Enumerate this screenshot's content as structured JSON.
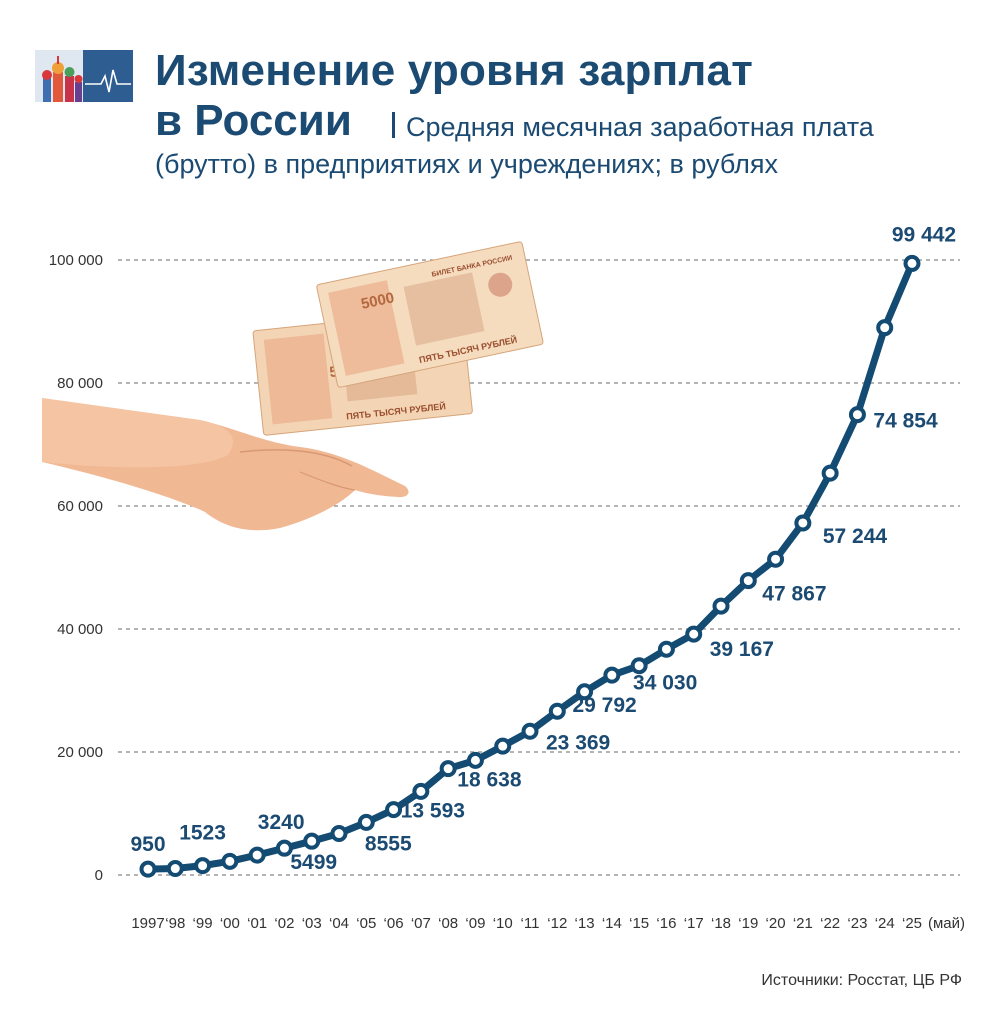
{
  "header": {
    "title_line1": "Изменение уровня зарплат",
    "title_line2": "в России",
    "subtitle_line1": "Средняя месячная заработная плата",
    "subtitle_line2": "(брутто) в предприятиях и учреждениях; в рублях",
    "logo_icon": "kremlin-cathedral-logo-icon"
  },
  "illustration": {
    "icon": "hand-with-5000-ruble-banknotes-icon",
    "banknote_texts": [
      "5000",
      "БИЛЕТ БАНКА РОССИИ",
      "ПЯТЬ ТЫСЯЧ РУБЛЕЙ"
    ]
  },
  "colors": {
    "line": "#134b73",
    "label": "#1b4a72",
    "grid": "#888888",
    "axis_text": "#333333"
  },
  "chart_data": {
    "type": "line",
    "ylim": [
      0,
      100000
    ],
    "yticks": [
      0,
      20000,
      40000,
      60000,
      80000,
      100000
    ],
    "ytick_labels": [
      "0",
      "20 000",
      "40 000",
      "60 000",
      "80 000",
      "100 000"
    ],
    "grid": true,
    "x_labels": [
      "1997",
      "‘98",
      "‘99",
      "‘00",
      "‘01",
      "‘02",
      "‘03",
      "‘04",
      "‘05",
      "‘06",
      "‘07",
      "‘08",
      "‘09",
      "‘10",
      "‘11",
      "‘12",
      "‘13",
      "‘14",
      "‘15",
      "‘16",
      "‘17",
      "‘18",
      "‘19",
      "‘20",
      "‘21",
      "‘22",
      "‘23",
      "‘24",
      "‘25"
    ],
    "x_suffix": "(май)",
    "values": [
      950,
      1050,
      1523,
      2223,
      3240,
      4360,
      5499,
      6740,
      8555,
      10634,
      13593,
      17290,
      18638,
      20952,
      23369,
      26629,
      29792,
      32495,
      34030,
      36709,
      39167,
      43724,
      47867,
      51344,
      57244,
      65338,
      74854,
      89000,
      99442
    ],
    "data_labels": [
      {
        "index": 0,
        "text": "950"
      },
      {
        "index": 2,
        "text": "1523"
      },
      {
        "index": 4,
        "text": "3240"
      },
      {
        "index": 6,
        "text": "5499"
      },
      {
        "index": 8,
        "text": "8555"
      },
      {
        "index": 10,
        "text": "13 593"
      },
      {
        "index": 12,
        "text": "18 638"
      },
      {
        "index": 14,
        "text": "23 369"
      },
      {
        "index": 16,
        "text": "29 792"
      },
      {
        "index": 18,
        "text": "34 030"
      },
      {
        "index": 20,
        "text": "39 167"
      },
      {
        "index": 22,
        "text": "47 867"
      },
      {
        "index": 24,
        "text": "57 244"
      },
      {
        "index": 26,
        "text": "74 854"
      },
      {
        "index": 28,
        "text": "99 442"
      }
    ]
  },
  "footer": {
    "source": "Источники: Росстат, ЦБ РФ"
  }
}
